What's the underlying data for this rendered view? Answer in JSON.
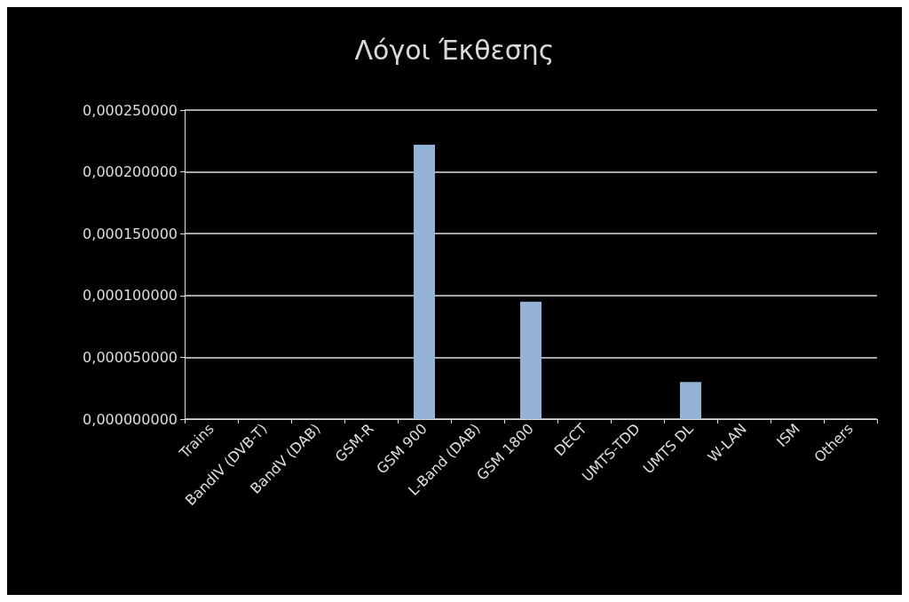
{
  "chart_data": {
    "type": "bar",
    "title": "Λόγοι Έκθεσης",
    "categories": [
      "Trains",
      "BandIV (DVB-T)",
      "BandV (DAB)",
      "GSM-R",
      "GSM 900",
      "L-Band (DAB)",
      "GSM 1800",
      "DECT",
      "UMTS-TDD",
      "UMTS DL",
      "W-LAN",
      "ISM",
      "Others"
    ],
    "values": [
      0,
      0,
      0,
      0,
      0.000222,
      0,
      9.5e-05,
      0,
      0,
      3e-05,
      0,
      0,
      0
    ],
    "color": "#95b3d7",
    "ylim": [
      0,
      0.00025
    ],
    "yticks": [
      {
        "value": 0,
        "label": "0,000000000"
      },
      {
        "value": 5e-05,
        "label": "0,000050000"
      },
      {
        "value": 0.0001,
        "label": "0,000100000"
      },
      {
        "value": 0.00015,
        "label": "0,000150000"
      },
      {
        "value": 0.0002,
        "label": "0,000200000"
      },
      {
        "value": 0.00025,
        "label": "0,000250000"
      }
    ],
    "grid": "y"
  }
}
